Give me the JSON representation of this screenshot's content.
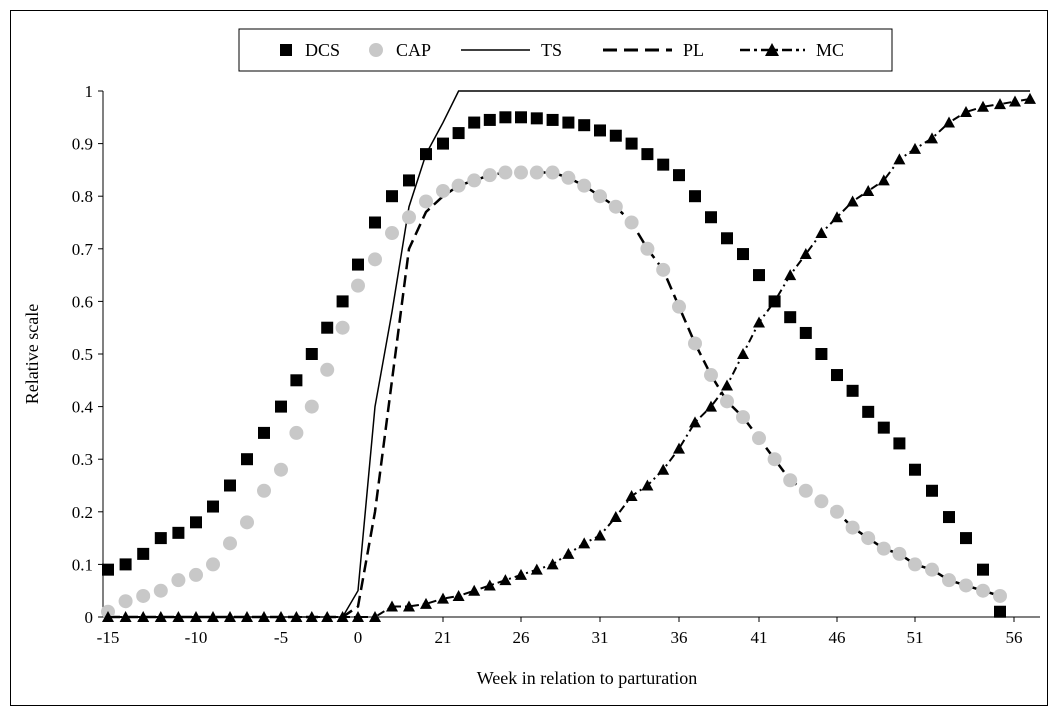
{
  "chart_data": {
    "type": "line",
    "xlabel": "Week in relation to parturation",
    "ylabel": "Relative scale",
    "xlim": [
      -15,
      58
    ],
    "ylim": [
      0,
      1
    ],
    "x_ticks": [
      "-15",
      "-10",
      "-5",
      "0",
      "21",
      "26",
      "31",
      "36",
      "41",
      "46",
      "51",
      "56"
    ],
    "y_ticks": [
      "0",
      "0.1",
      "0.2",
      "0.3",
      "0.4",
      "0.5",
      "0.6",
      "0.7",
      "0.8",
      "0.9",
      "1"
    ],
    "legend_position": "top",
    "grid": false,
    "series": [
      {
        "name": "DCS",
        "style": "square-markers",
        "color": "#000000",
        "x": [
          -15,
          -14,
          -13,
          -12,
          -11,
          -10,
          -9,
          -8,
          -7,
          -6,
          -5,
          -4,
          -3,
          -2,
          -1,
          0,
          1,
          2,
          3,
          4,
          5,
          6,
          7,
          8,
          9,
          10,
          11,
          12,
          13,
          14,
          15,
          16,
          17,
          18,
          19,
          20,
          21,
          22,
          23,
          24,
          25,
          26,
          27,
          28,
          29,
          30,
          31,
          32,
          33,
          34,
          35,
          36,
          37,
          38,
          39,
          40,
          41,
          42
        ],
        "y": [
          0.09,
          0.1,
          0.12,
          0.15,
          0.16,
          0.18,
          0.21,
          0.25,
          0.3,
          0.35,
          0.4,
          0.45,
          0.5,
          0.55,
          0.6,
          0.67,
          0.75,
          0.8,
          0.83,
          0.88,
          0.9,
          0.92,
          0.94,
          0.945,
          0.95,
          0.95,
          0.948,
          0.945,
          0.94,
          0.935,
          0.925,
          0.915,
          0.9,
          0.88,
          0.86,
          0.84,
          0.8,
          0.76,
          0.72,
          0.69,
          0.65,
          0.6,
          0.57,
          0.54,
          0.5,
          0.46,
          0.43,
          0.39,
          0.36,
          0.33,
          0.28,
          0.24,
          0.19,
          0.15,
          0.09,
          0.01,
          null,
          null
        ]
      },
      {
        "name": "CAP",
        "style": "circle-markers",
        "color": "#c8c8c8",
        "x": [
          -15,
          -14,
          -13,
          -12,
          -11,
          -10,
          -9,
          -8,
          -7,
          -6,
          -5,
          -4,
          -3,
          -2,
          -1,
          0,
          1,
          2,
          3,
          4,
          5,
          6,
          7,
          8,
          9,
          10,
          11,
          12,
          13,
          14,
          15,
          16,
          17,
          18,
          19,
          20,
          21,
          22,
          23,
          24,
          25,
          26,
          27,
          28,
          29,
          30,
          31,
          32,
          33,
          34,
          35,
          36,
          37,
          38,
          39,
          40
        ],
        "y": [
          0.01,
          0.03,
          0.04,
          0.05,
          0.07,
          0.08,
          0.1,
          0.14,
          0.18,
          0.24,
          0.28,
          0.35,
          0.4,
          0.47,
          0.55,
          0.63,
          0.68,
          0.73,
          0.76,
          0.79,
          0.81,
          0.82,
          0.83,
          0.84,
          0.845,
          0.845,
          0.845,
          0.845,
          0.835,
          0.82,
          0.8,
          0.78,
          0.75,
          0.7,
          0.66,
          0.59,
          0.52,
          0.46,
          0.41,
          0.38,
          0.34,
          0.3,
          0.26,
          0.24,
          0.22,
          0.2,
          0.17,
          0.15,
          0.13,
          0.12,
          0.1,
          0.09,
          0.07,
          0.06,
          0.05,
          0.04
        ]
      },
      {
        "name": "TS",
        "style": "solid-line",
        "color": "#000000",
        "x": [
          -15,
          -1,
          0,
          1,
          2,
          3,
          4,
          5,
          6,
          7,
          55,
          56
        ],
        "y": [
          0,
          0,
          0.05,
          0.4,
          0.58,
          0.78,
          0.88,
          0.94,
          1.0,
          1.0,
          1.0,
          1.0
        ]
      },
      {
        "name": "PL",
        "style": "dashed-line",
        "color": "#000000",
        "x": [
          -15,
          -1,
          0,
          1,
          2,
          3,
          4,
          5,
          6,
          7,
          8,
          9,
          10,
          11,
          12,
          13,
          14,
          15,
          16,
          17,
          18,
          19,
          20,
          21,
          22,
          23,
          24,
          25,
          26,
          27,
          28,
          29,
          30,
          31,
          32,
          33,
          34,
          35,
          36,
          37,
          38,
          39,
          40
        ],
        "y": [
          0,
          0,
          0.02,
          0.2,
          0.45,
          0.7,
          0.77,
          0.8,
          0.82,
          0.83,
          0.84,
          0.845,
          0.845,
          0.845,
          0.845,
          0.835,
          0.82,
          0.8,
          0.78,
          0.75,
          0.7,
          0.66,
          0.59,
          0.52,
          0.46,
          0.41,
          0.38,
          0.34,
          0.3,
          0.26,
          0.24,
          0.22,
          0.2,
          0.17,
          0.15,
          0.13,
          0.12,
          0.1,
          0.09,
          0.07,
          0.06,
          0.05,
          0.04
        ]
      },
      {
        "name": "MC",
        "style": "dash-dot-triangles",
        "color": "#000000",
        "x": [
          -15,
          -14,
          -13,
          -12,
          -11,
          -10,
          -9,
          -8,
          -7,
          -6,
          -5,
          -4,
          -3,
          -2,
          -1,
          0,
          1,
          2,
          3,
          4,
          5,
          6,
          7,
          8,
          9,
          10,
          11,
          12,
          13,
          14,
          15,
          16,
          17,
          18,
          19,
          20,
          21,
          22,
          23,
          24,
          25,
          26,
          27,
          28,
          29,
          30,
          31,
          32,
          33,
          34,
          35,
          36,
          37,
          38,
          39,
          40,
          41,
          42
        ],
        "y": [
          0,
          0,
          0,
          0,
          0,
          0,
          0,
          0,
          0,
          0,
          0,
          0,
          0,
          0,
          0,
          0,
          0,
          0.02,
          0.02,
          0.025,
          0.035,
          0.04,
          0.05,
          0.06,
          0.07,
          0.08,
          0.09,
          0.1,
          0.12,
          0.14,
          0.155,
          0.19,
          0.23,
          0.25,
          0.28,
          0.32,
          0.37,
          0.4,
          0.44,
          0.5,
          0.56,
          0.6,
          0.65,
          0.69,
          0.73,
          0.76,
          0.79,
          0.81,
          0.83,
          0.87,
          0.89,
          0.91,
          0.94,
          0.96,
          0.97,
          0.975,
          0.98,
          0.985
        ]
      }
    ]
  }
}
